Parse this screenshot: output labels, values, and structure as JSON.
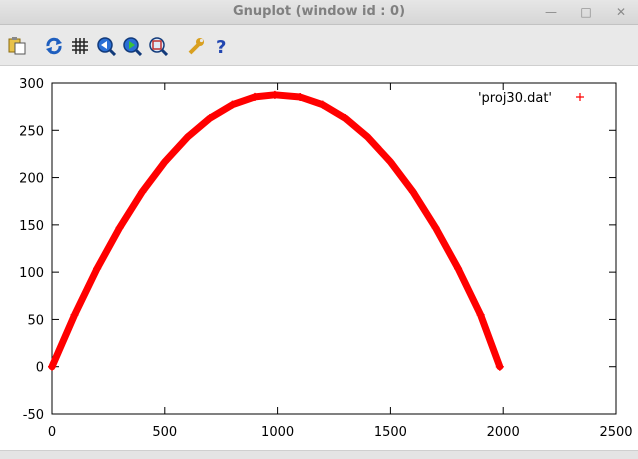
{
  "window": {
    "title": "Gnuplot (window id : 0)"
  },
  "toolbar": {
    "buttons": [
      {
        "name": "copy-clipboard",
        "icon": "clipboard-icon"
      },
      {
        "name": "replot",
        "icon": "refresh-icon"
      },
      {
        "name": "grid",
        "icon": "grid-icon"
      },
      {
        "name": "previous-zoom",
        "icon": "zoom-previous-icon"
      },
      {
        "name": "next-zoom",
        "icon": "zoom-next-icon"
      },
      {
        "name": "autoscale",
        "icon": "autoscale-icon"
      },
      {
        "name": "settings",
        "icon": "wrench-icon"
      },
      {
        "name": "help",
        "icon": "help-icon"
      }
    ]
  },
  "chart_data": {
    "type": "scatter",
    "xlim": [
      0,
      2500
    ],
    "ylim": [
      -50,
      300
    ],
    "xticks": [
      0,
      500,
      1000,
      1500,
      2000,
      2500
    ],
    "yticks": [
      -50,
      0,
      50,
      100,
      150,
      200,
      250,
      300
    ],
    "grid": false,
    "legend_position": "top-right",
    "series": [
      {
        "name": "'proj30.dat'",
        "color": "#ff0000",
        "marker": "+",
        "x": [
          0,
          100,
          200,
          300,
          400,
          500,
          600,
          700,
          800,
          900,
          988,
          1100,
          1200,
          1300,
          1400,
          1500,
          1600,
          1700,
          1800,
          1900,
          1985
        ],
        "y": [
          0,
          54.8,
          103.8,
          147.1,
          184.8,
          216.6,
          242.7,
          262.8,
          277.1,
          285.3,
          287.5,
          285.2,
          277.1,
          262.8,
          242.7,
          216.6,
          184.8,
          147.1,
          103.8,
          54.8,
          0
        ]
      }
    ]
  }
}
